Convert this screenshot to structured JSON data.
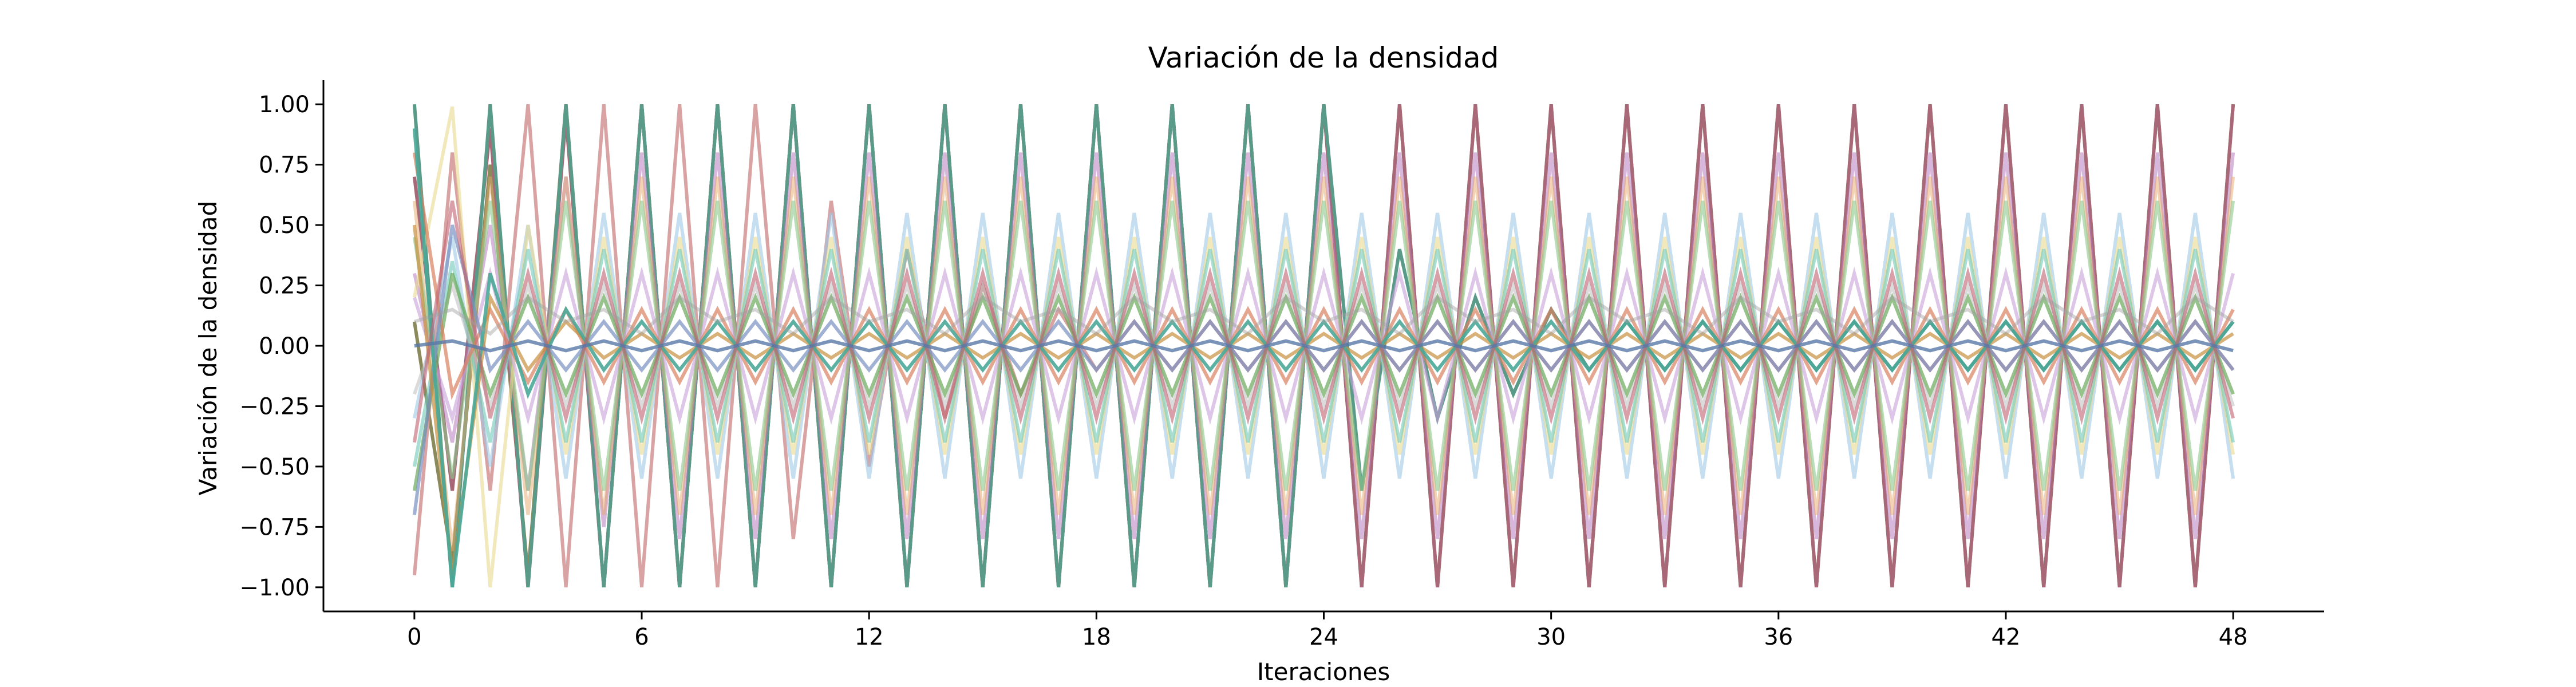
{
  "chart_data": {
    "type": "line",
    "title": "Variación de la densidad",
    "xlabel": "Iteraciones",
    "ylabel": "Variación de la densidad",
    "xlim": [
      -2.4,
      50.4
    ],
    "ylim": [
      -1.1,
      1.1
    ],
    "x_ticks": [
      0,
      6,
      12,
      18,
      24,
      30,
      36,
      42,
      48
    ],
    "x_tick_labels": [
      "0",
      "6",
      "12",
      "18",
      "24",
      "30",
      "36",
      "42",
      "48"
    ],
    "y_ticks": [
      1.0,
      0.75,
      0.5,
      0.25,
      0.0,
      -0.25,
      -0.5,
      -0.75,
      -1.0
    ],
    "y_tick_labels": [
      "1.00",
      "0.75",
      "0.50",
      "0.25",
      "0.00",
      "−0.25",
      "−0.50",
      "−0.75",
      "−1.00"
    ],
    "grid": false,
    "legend": "none",
    "x": [
      0,
      1,
      2,
      3,
      4,
      5,
      6,
      7,
      8,
      9,
      10,
      11,
      12,
      13,
      14,
      15,
      16,
      17,
      18,
      19,
      20,
      21,
      22,
      23,
      24,
      25,
      26,
      27,
      28,
      29,
      30,
      31,
      32,
      33,
      34,
      35,
      36,
      37,
      38,
      39,
      40,
      41,
      42,
      43,
      44,
      45,
      46,
      47,
      48
    ],
    "series": [
      {
        "color": "#8a8a5c",
        "opacity": 1.0,
        "values": [
          0.1,
          -0.9,
          0.75,
          -0.95,
          1.0,
          -1.0,
          1.0,
          -1.0,
          1.0,
          -1.0,
          1.0,
          -1.0,
          1.0,
          -1.0,
          1.0,
          -1.0,
          1.0,
          -1.0,
          1.0,
          -1.0,
          1.0,
          -1.0,
          1.0,
          -1.0,
          1.0,
          -1.0,
          1.0,
          -1.0,
          1.0,
          -1.0,
          1.0,
          -1.0,
          1.0,
          -1.0,
          1.0,
          -1.0,
          1.0,
          -1.0,
          1.0,
          -1.0,
          1.0,
          -1.0,
          1.0,
          -1.0,
          1.0,
          -1.0,
          1.0,
          -1.0,
          1.0
        ]
      },
      {
        "color": "#a86878",
        "opacity": 1.0,
        "values": [
          0.7,
          -0.6,
          0.9,
          -1.0,
          0.95,
          -1.0,
          1.0,
          -1.0,
          1.0,
          -1.0,
          1.0,
          -1.0,
          1.0,
          -1.0,
          1.0,
          -1.0,
          1.0,
          -1.0,
          1.0,
          -1.0,
          1.0,
          -1.0,
          1.0,
          -1.0,
          1.0,
          -1.0,
          1.0,
          -1.0,
          1.0,
          -1.0,
          1.0,
          -1.0,
          1.0,
          -1.0,
          1.0,
          -1.0,
          1.0,
          -1.0,
          1.0,
          -1.0,
          1.0,
          -1.0,
          1.0,
          -1.0,
          1.0,
          -1.0,
          1.0,
          -1.0,
          1.0
        ]
      },
      {
        "color": "#5a9a88",
        "opacity": 1.0,
        "values": [
          1.0,
          -1.0,
          1.0,
          -1.0,
          1.0,
          -1.0,
          1.0,
          -1.0,
          1.0,
          -1.0,
          1.0,
          -1.0,
          1.0,
          -1.0,
          1.0,
          -1.0,
          1.0,
          -1.0,
          1.0,
          -1.0,
          1.0,
          -1.0,
          1.0,
          -1.0,
          1.0,
          -0.6,
          0.4,
          -0.3,
          0.2,
          -0.2,
          0.15,
          -0.1,
          0.1,
          -0.1,
          0.1,
          -0.1,
          0.1,
          -0.1,
          0.1,
          -0.1,
          0.1,
          -0.1,
          0.1,
          -0.1,
          0.1,
          -0.1,
          0.1,
          -0.1,
          0.1
        ]
      },
      {
        "color": "#d08c8c",
        "opacity": 0.8,
        "values": [
          -0.95,
          0.8,
          -0.6,
          1.0,
          -1.0,
          1.0,
          -1.0,
          1.0,
          -1.0,
          1.0,
          -0.8,
          0.6,
          -0.5,
          0.4,
          -0.3,
          0.25,
          -0.2,
          0.15,
          -0.1,
          0.1,
          -0.1,
          0.1,
          -0.1,
          0.1,
          -0.1,
          0.1,
          -0.1,
          0.1,
          -0.1,
          0.1,
          -0.1,
          0.1,
          -0.1,
          0.1,
          -0.1,
          0.1,
          -0.1,
          0.1,
          -0.1,
          0.1,
          -0.1,
          0.1,
          -0.1,
          0.1,
          -0.1,
          0.1,
          -0.1,
          0.1,
          -0.1
        ]
      },
      {
        "color": "#b87cc0",
        "opacity": 0.55,
        "values": [
          0.3,
          -0.4,
          0.5,
          -0.6,
          0.7,
          -0.75,
          0.8,
          -0.8,
          0.8,
          -0.8,
          0.8,
          -0.8,
          0.8,
          -0.8,
          0.8,
          -0.8,
          0.8,
          -0.8,
          0.8,
          -0.8,
          0.8,
          -0.8,
          0.8,
          -0.8,
          0.8,
          -0.8,
          0.8,
          -0.8,
          0.8,
          -0.8,
          0.8,
          -0.8,
          0.8,
          -0.8,
          0.8,
          -0.8,
          0.8,
          -0.8,
          0.8,
          -0.8,
          0.8,
          -0.8,
          0.8,
          -0.8,
          0.8,
          -0.8,
          0.8,
          -0.8,
          0.8
        ]
      },
      {
        "color": "#e6a868",
        "opacity": 0.5,
        "values": [
          0.6,
          -0.85,
          0.7,
          -0.7,
          0.7,
          -0.7,
          0.7,
          -0.7,
          0.7,
          -0.7,
          0.7,
          -0.7,
          0.7,
          -0.7,
          0.7,
          -0.7,
          0.7,
          -0.7,
          0.7,
          -0.7,
          0.7,
          -0.7,
          0.7,
          -0.7,
          0.7,
          -0.7,
          0.7,
          -0.7,
          0.7,
          -0.7,
          0.7,
          -0.7,
          0.7,
          -0.7,
          0.7,
          -0.7,
          0.7,
          -0.7,
          0.7,
          -0.7,
          0.7,
          -0.7,
          0.7,
          -0.7,
          0.7,
          -0.7,
          0.7,
          -0.7,
          0.7
        ]
      },
      {
        "color": "#9fc8e6",
        "opacity": 0.6,
        "values": [
          -0.3,
          0.45,
          -0.5,
          0.5,
          -0.55,
          0.55,
          -0.55,
          0.55,
          -0.55,
          0.55,
          -0.55,
          0.55,
          -0.55,
          0.55,
          -0.55,
          0.55,
          -0.55,
          0.55,
          -0.55,
          0.55,
          -0.55,
          0.55,
          -0.55,
          0.55,
          -0.55,
          0.55,
          -0.55,
          0.55,
          -0.55,
          0.55,
          -0.55,
          0.55,
          -0.55,
          0.55,
          -0.55,
          0.55,
          -0.55,
          0.55,
          -0.55,
          0.55,
          -0.55,
          0.55,
          -0.55,
          0.55,
          -0.55,
          0.55,
          -0.55,
          0.55,
          -0.55
        ]
      },
      {
        "color": "#8cc88c",
        "opacity": 0.6,
        "values": [
          0.45,
          -0.55,
          0.6,
          -0.6,
          0.6,
          -0.6,
          0.6,
          -0.6,
          0.6,
          -0.6,
          0.6,
          -0.6,
          0.6,
          -0.6,
          0.6,
          -0.6,
          0.6,
          -0.6,
          0.6,
          -0.6,
          0.6,
          -0.6,
          0.6,
          -0.6,
          0.6,
          -0.6,
          0.6,
          -0.6,
          0.6,
          -0.6,
          0.6,
          -0.6,
          0.6,
          -0.6,
          0.6,
          -0.6,
          0.6,
          -0.6,
          0.6,
          -0.6,
          0.6,
          -0.6,
          0.6,
          -0.6,
          0.6,
          -0.6,
          0.6,
          -0.6,
          0.6
        ]
      },
      {
        "color": "#e8d890",
        "opacity": 0.6,
        "values": [
          0.2,
          0.99,
          -1.0,
          0.5,
          -0.45,
          0.45,
          -0.45,
          0.45,
          -0.45,
          0.45,
          -0.45,
          0.45,
          -0.45,
          0.45,
          -0.45,
          0.45,
          -0.45,
          0.45,
          -0.45,
          0.45,
          -0.45,
          0.45,
          -0.45,
          0.45,
          -0.45,
          0.45,
          -0.45,
          0.45,
          -0.45,
          0.45,
          -0.45,
          0.45,
          -0.45,
          0.45,
          -0.45,
          0.45,
          -0.45,
          0.45,
          -0.45,
          0.45,
          -0.45,
          0.45,
          -0.45,
          0.45,
          -0.45,
          0.45,
          -0.45,
          0.45,
          -0.45
        ]
      },
      {
        "color": "#70c8b8",
        "opacity": 0.6,
        "values": [
          -0.5,
          0.35,
          -0.4,
          0.4,
          -0.4,
          0.4,
          -0.4,
          0.4,
          -0.4,
          0.4,
          -0.4,
          0.4,
          -0.4,
          0.4,
          -0.4,
          0.4,
          -0.4,
          0.4,
          -0.4,
          0.4,
          -0.4,
          0.4,
          -0.4,
          0.4,
          -0.4,
          0.4,
          -0.4,
          0.4,
          -0.4,
          0.4,
          -0.4,
          0.4,
          -0.4,
          0.4,
          -0.4,
          0.4,
          -0.4,
          0.4,
          -0.4,
          0.4,
          -0.4,
          0.4,
          -0.4,
          0.4,
          -0.4,
          0.4,
          -0.4,
          0.4,
          -0.4
        ]
      },
      {
        "color": "#c8a0d8",
        "opacity": 0.6,
        "values": [
          0.2,
          -0.3,
          0.3,
          -0.3,
          0.3,
          -0.3,
          0.3,
          -0.3,
          0.3,
          -0.3,
          0.3,
          -0.3,
          0.3,
          -0.3,
          0.3,
          -0.3,
          0.3,
          -0.3,
          0.3,
          -0.3,
          0.3,
          -0.3,
          0.3,
          -0.3,
          0.3,
          -0.3,
          0.3,
          -0.3,
          0.3,
          -0.3,
          0.3,
          -0.3,
          0.3,
          -0.3,
          0.3,
          -0.3,
          0.3,
          -0.3,
          0.3,
          -0.3,
          0.3,
          -0.3,
          0.3,
          -0.3,
          0.3,
          -0.3,
          0.3,
          -0.3,
          0.3
        ]
      },
      {
        "color": "#b8b8b8",
        "opacity": 0.5,
        "values": [
          -0.2,
          0.25,
          -0.25,
          0.25,
          -0.25,
          0.25,
          -0.25,
          0.25,
          -0.25,
          0.25,
          -0.25,
          0.25,
          -0.25,
          0.25,
          -0.25,
          0.25,
          -0.25,
          0.25,
          -0.25,
          0.25,
          -0.25,
          0.25,
          -0.25,
          0.25,
          -0.25,
          0.25,
          -0.25,
          0.25,
          -0.25,
          0.25,
          -0.25,
          0.25,
          -0.25,
          0.25,
          -0.25,
          0.25,
          -0.25,
          0.25,
          -0.25,
          0.25,
          -0.25,
          0.25,
          -0.25,
          0.25,
          -0.25,
          0.25,
          -0.25,
          0.25,
          -0.25
        ]
      },
      {
        "color": "#6aa85a",
        "opacity": 0.7,
        "values": [
          -0.6,
          0.3,
          -0.2,
          0.2,
          -0.2,
          0.2,
          -0.2,
          0.2,
          -0.2,
          0.2,
          -0.2,
          0.2,
          -0.2,
          0.2,
          -0.2,
          0.2,
          -0.2,
          0.2,
          -0.2,
          0.2,
          -0.2,
          0.2,
          -0.2,
          0.2,
          -0.2,
          0.2,
          -0.2,
          0.2,
          -0.2,
          0.2,
          -0.2,
          0.2,
          -0.2,
          0.2,
          -0.2,
          0.2,
          -0.2,
          0.2,
          -0.2,
          0.2,
          -0.2,
          0.2,
          -0.2,
          0.2,
          -0.2,
          0.2,
          -0.2,
          0.2,
          -0.2
        ]
      },
      {
        "color": "#d88060",
        "opacity": 0.7,
        "values": [
          0.8,
          -0.2,
          0.15,
          -0.15,
          0.15,
          -0.15,
          0.15,
          -0.15,
          0.15,
          -0.15,
          0.15,
          -0.15,
          0.15,
          -0.15,
          0.15,
          -0.15,
          0.15,
          -0.15,
          0.15,
          -0.15,
          0.15,
          -0.15,
          0.15,
          -0.15,
          0.15,
          -0.15,
          0.15,
          -0.15,
          0.15,
          -0.15,
          0.15,
          -0.15,
          0.15,
          -0.15,
          0.15,
          -0.15,
          0.15,
          -0.15,
          0.15,
          -0.15,
          0.15,
          -0.15,
          0.15,
          -0.15,
          0.15,
          -0.15,
          0.15,
          -0.15,
          0.15
        ]
      },
      {
        "color": "#7890c0",
        "opacity": 0.7,
        "values": [
          -0.7,
          0.5,
          -0.1,
          0.1,
          -0.1,
          0.1,
          -0.1,
          0.1,
          -0.1,
          0.1,
          -0.1,
          0.1,
          -0.1,
          0.1,
          -0.1,
          0.1,
          -0.1,
          0.1,
          -0.1,
          0.1,
          -0.1,
          0.1,
          -0.1,
          0.1,
          -0.1,
          0.1,
          -0.1,
          0.1,
          -0.1,
          0.1,
          -0.1,
          0.1,
          -0.1,
          0.1,
          -0.1,
          0.1,
          -0.1,
          0.1,
          -0.1,
          0.1,
          -0.1,
          0.1,
          -0.1,
          0.1,
          -0.1,
          0.1,
          -0.1,
          0.1,
          -0.1
        ]
      },
      {
        "color": "#c89040",
        "opacity": 0.7,
        "values": [
          0.5,
          -0.95,
          0.2,
          -0.1,
          0.1,
          -0.05,
          0.05,
          -0.05,
          0.05,
          -0.05,
          0.05,
          -0.05,
          0.05,
          -0.05,
          0.05,
          -0.05,
          0.05,
          -0.05,
          0.05,
          -0.05,
          0.05,
          -0.05,
          0.05,
          -0.05,
          0.05,
          -0.05,
          0.05,
          -0.05,
          0.05,
          -0.05,
          0.05,
          -0.05,
          0.05,
          -0.05,
          0.05,
          -0.05,
          0.05,
          -0.05,
          0.05,
          -0.05,
          0.05,
          -0.05,
          0.05,
          -0.05,
          0.05,
          -0.05,
          0.05,
          -0.05,
          0.05
        ]
      },
      {
        "color": "#4aa898",
        "opacity": 0.9,
        "values": [
          0.9,
          -1.0,
          0.3,
          -0.2,
          0.15,
          -0.1,
          0.1,
          -0.1,
          0.1,
          -0.1,
          0.1,
          -0.1,
          0.1,
          -0.1,
          0.1,
          -0.1,
          0.1,
          -0.1,
          0.1,
          -0.1,
          0.1,
          -0.1,
          0.1,
          -0.1,
          0.1,
          -0.1,
          0.1,
          -0.1,
          0.1,
          -0.1,
          0.1,
          -0.1,
          0.1,
          -0.1,
          0.1,
          -0.1,
          0.1,
          -0.1,
          0.1,
          -0.1,
          0.1,
          -0.1,
          0.1,
          -0.1,
          0.1,
          -0.1,
          0.1,
          -0.1,
          0.1
        ]
      },
      {
        "color": "#c06070",
        "opacity": 0.6,
        "values": [
          -0.4,
          0.6,
          -0.3,
          0.3,
          -0.3,
          0.3,
          -0.3,
          0.3,
          -0.3,
          0.3,
          -0.3,
          0.3,
          -0.3,
          0.3,
          -0.3,
          0.3,
          -0.3,
          0.3,
          -0.3,
          0.3,
          -0.3,
          0.3,
          -0.3,
          0.3,
          -0.3,
          0.3,
          -0.3,
          0.3,
          -0.3,
          0.3,
          -0.3,
          0.3,
          -0.3,
          0.3,
          -0.3,
          0.3,
          -0.3,
          0.3,
          -0.3,
          0.3,
          -0.3,
          0.3,
          -0.3,
          0.3,
          -0.3,
          0.3,
          -0.3,
          0.3,
          -0.3
        ]
      },
      {
        "color": "#a0a0a0",
        "opacity": 0.45,
        "values": [
          0.1,
          0.15,
          0.05,
          0.2,
          0.1,
          0.15,
          0.05,
          0.2,
          0.1,
          0.15,
          0.05,
          0.2,
          0.1,
          0.15,
          0.05,
          0.2,
          0.1,
          0.15,
          0.05,
          0.2,
          0.1,
          0.15,
          0.05,
          0.2,
          0.1,
          0.15,
          0.05,
          0.2,
          0.1,
          0.15,
          0.05,
          0.2,
          0.1,
          0.15,
          0.05,
          0.2,
          0.1,
          0.15,
          0.05,
          0.2,
          0.1,
          0.15,
          0.05,
          0.2,
          0.1,
          0.15,
          0.05,
          0.2,
          0.1
        ]
      },
      {
        "color": "#5878a8",
        "opacity": 0.8,
        "values": [
          0.0,
          0.02,
          -0.02,
          0.02,
          -0.02,
          0.02,
          -0.02,
          0.02,
          -0.02,
          0.02,
          -0.02,
          0.02,
          -0.02,
          0.02,
          -0.02,
          0.02,
          -0.02,
          0.02,
          -0.02,
          0.02,
          -0.02,
          0.02,
          -0.02,
          0.02,
          -0.02,
          0.02,
          -0.02,
          0.02,
          -0.02,
          0.02,
          -0.02,
          0.02,
          -0.02,
          0.02,
          -0.02,
          0.02,
          -0.02,
          0.02,
          -0.02,
          0.02,
          -0.02,
          0.02,
          -0.02,
          0.02,
          -0.02,
          0.02,
          -0.02,
          0.02,
          -0.02
        ]
      }
    ]
  }
}
